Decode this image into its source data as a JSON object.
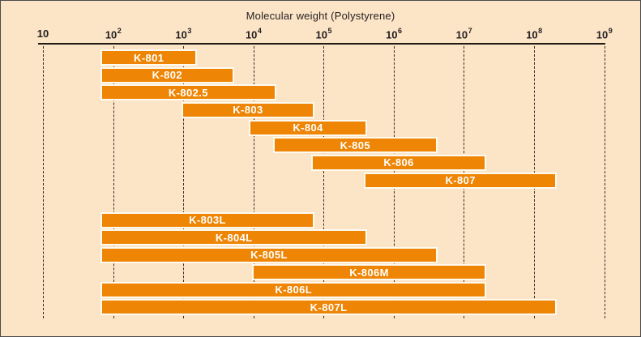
{
  "figure": {
    "title": "Molecular weight (Polystyrene)",
    "colors": {
      "background": "#fce4c6",
      "bar": "#ee8504",
      "bar_label": "#ffffff",
      "axis_text": "#231f20",
      "grid": "#332e28",
      "bar_separator": "#fffaf0"
    }
  },
  "chart_data": {
    "type": "bar",
    "subtype": "horizontal-log-range",
    "title": "Molecular weight (Polystyrene)",
    "xlabel": "Molecular weight (Polystyrene)",
    "x_scale": "log10",
    "xlim": [
      10,
      1000000000
    ],
    "x_ticks": [
      10,
      100,
      1000,
      10000,
      100000,
      1000000,
      10000000,
      100000000,
      1000000000
    ],
    "x_tick_labels": [
      {
        "base": "10",
        "exp": ""
      },
      {
        "base": "10",
        "exp": "2"
      },
      {
        "base": "10",
        "exp": "3"
      },
      {
        "base": "10",
        "exp": "4"
      },
      {
        "base": "10",
        "exp": "5"
      },
      {
        "base": "10",
        "exp": "6"
      },
      {
        "base": "10",
        "exp": "7"
      },
      {
        "base": "10",
        "exp": "8"
      },
      {
        "base": "10",
        "exp": "9"
      }
    ],
    "grid": "vertical-dashed",
    "legend": "none",
    "series": [
      {
        "group": "upper",
        "bars": [
          {
            "label": "K-801",
            "range": [
              70,
              1500
            ]
          },
          {
            "label": "K-802",
            "range": [
              70,
              5000
            ]
          },
          {
            "label": "K-802.5",
            "range": [
              70,
              20000
            ]
          },
          {
            "label": "K-803",
            "range": [
              1000,
              70000
            ]
          },
          {
            "label": "K-804",
            "range": [
              9000,
              400000
            ]
          },
          {
            "label": "K-805",
            "range": [
              20000,
              4000000
            ]
          },
          {
            "label": "K-806",
            "range": [
              70000,
              20000000
            ]
          },
          {
            "label": "K-807",
            "range": [
              400000,
              200000000
            ]
          }
        ]
      },
      {
        "group": "lower",
        "bars": [
          {
            "label": "K-803L",
            "range": [
              70,
              70000
            ]
          },
          {
            "label": "K-804L",
            "range": [
              70,
              400000
            ]
          },
          {
            "label": "K-805L",
            "range": [
              70,
              4000000
            ]
          },
          {
            "label": "K-806M",
            "range": [
              10000,
              20000000
            ]
          },
          {
            "label": "K-806L",
            "range": [
              70,
              20000000
            ]
          },
          {
            "label": "K-807L",
            "range": [
              70,
              200000000
            ]
          }
        ]
      }
    ]
  }
}
